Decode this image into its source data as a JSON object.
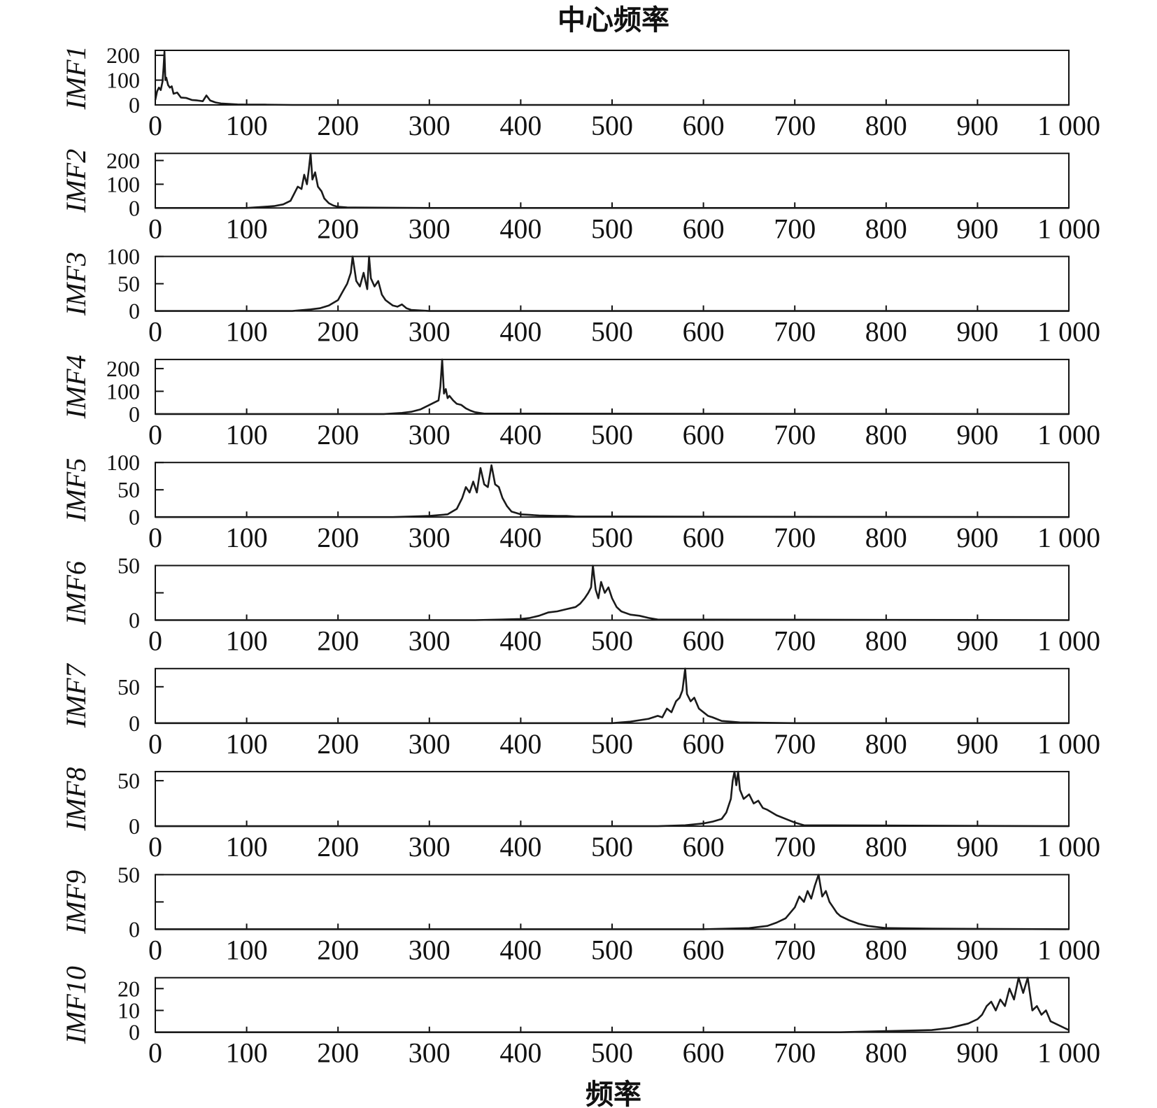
{
  "chart_data": {
    "type": "line",
    "title": "中心频率",
    "xlabel": "频率",
    "xlim": [
      0,
      1000
    ],
    "xticks": [
      0,
      100,
      200,
      300,
      400,
      500,
      600,
      700,
      800,
      900,
      1000
    ],
    "xtick_labels": [
      "0",
      "100",
      "200",
      "300",
      "400",
      "500",
      "600",
      "700",
      "800",
      "900",
      "1 000"
    ],
    "grid": false,
    "line_color": "#1a1a1a",
    "panels": [
      {
        "ylabel": "IMF1",
        "ylim": [
          0,
          220
        ],
        "yticks": [
          0,
          100,
          200
        ],
        "ytick_labels": [
          "0",
          "100",
          "200"
        ],
        "x": [
          0,
          2,
          4,
          6,
          8,
          9,
          10,
          11,
          12,
          14,
          16,
          18,
          20,
          24,
          28,
          34,
          40,
          46,
          52,
          56,
          60,
          66,
          72,
          80,
          90,
          100,
          120,
          150,
          200,
          300,
          500,
          700,
          1000
        ],
        "values": [
          20,
          55,
          70,
          60,
          95,
          150,
          215,
          100,
          110,
          80,
          70,
          75,
          45,
          50,
          30,
          28,
          20,
          18,
          15,
          38,
          18,
          10,
          6,
          4,
          2,
          1,
          1,
          0,
          0,
          0,
          0,
          0,
          0
        ]
      },
      {
        "ylabel": "IMF2",
        "ylim": [
          0,
          230
        ],
        "yticks": [
          0,
          100,
          200
        ],
        "ytick_labels": [
          "0",
          "100",
          "200"
        ],
        "x": [
          0,
          100,
          120,
          130,
          140,
          148,
          152,
          156,
          160,
          163,
          166,
          168,
          170,
          172,
          175,
          178,
          182,
          185,
          190,
          195,
          200,
          210,
          300,
          500,
          1000
        ],
        "values": [
          0,
          0,
          5,
          8,
          15,
          30,
          60,
          90,
          80,
          140,
          100,
          160,
          230,
          120,
          150,
          90,
          70,
          40,
          20,
          10,
          5,
          2,
          0,
          0,
          0
        ]
      },
      {
        "ylabel": "IMF3",
        "ylim": [
          0,
          100
        ],
        "yticks": [
          0,
          50,
          100
        ],
        "ytick_labels": [
          "0",
          "50",
          "100"
        ],
        "x": [
          0,
          150,
          170,
          180,
          190,
          200,
          205,
          210,
          214,
          216,
          220,
          224,
          228,
          232,
          234,
          236,
          240,
          244,
          248,
          252,
          256,
          260,
          265,
          270,
          275,
          280,
          300,
          1000
        ],
        "values": [
          0,
          0,
          3,
          5,
          10,
          20,
          35,
          50,
          70,
          100,
          55,
          45,
          70,
          40,
          100,
          60,
          45,
          55,
          30,
          20,
          15,
          10,
          8,
          12,
          5,
          2,
          0,
          0
        ]
      },
      {
        "ylabel": "IMF4",
        "ylim": [
          0,
          240
        ],
        "yticks": [
          0,
          100,
          200
        ],
        "ytick_labels": [
          "0",
          "100",
          "200"
        ],
        "x": [
          0,
          250,
          270,
          280,
          290,
          300,
          305,
          310,
          312,
          314,
          316,
          318,
          320,
          322,
          326,
          330,
          335,
          340,
          345,
          350,
          360,
          1000
        ],
        "values": [
          0,
          0,
          5,
          10,
          20,
          40,
          50,
          60,
          120,
          240,
          90,
          110,
          70,
          80,
          60,
          45,
          40,
          25,
          15,
          8,
          2,
          0
        ]
      },
      {
        "ylabel": "IMF5",
        "ylim": [
          0,
          100
        ],
        "yticks": [
          0,
          50,
          100
        ],
        "ytick_labels": [
          "0",
          "50",
          "100"
        ],
        "x": [
          0,
          260,
          280,
          300,
          320,
          330,
          336,
          340,
          344,
          348,
          352,
          356,
          360,
          364,
          368,
          372,
          376,
          380,
          385,
          390,
          400,
          410,
          420,
          440,
          450,
          460,
          1000
        ],
        "values": [
          0,
          0,
          1,
          2,
          5,
          15,
          35,
          55,
          45,
          65,
          45,
          90,
          60,
          55,
          95,
          60,
          55,
          35,
          20,
          10,
          5,
          4,
          3,
          2,
          2,
          1,
          0
        ]
      },
      {
        "ylabel": "IMF6",
        "ylim": [
          0,
          50
        ],
        "yticks": [
          0,
          25,
          50
        ],
        "ytick_labels": [
          "0",
          "",
          "50"
        ],
        "x": [
          0,
          350,
          380,
          400,
          410,
          420,
          430,
          440,
          450,
          460,
          465,
          470,
          474,
          477,
          479,
          482,
          485,
          488,
          492,
          496,
          500,
          505,
          510,
          520,
          530,
          540,
          550,
          1000
        ],
        "values": [
          0,
          0,
          0.5,
          1,
          2,
          4,
          7,
          8,
          10,
          12,
          15,
          20,
          25,
          30,
          50,
          28,
          20,
          35,
          25,
          30,
          20,
          12,
          8,
          5,
          4,
          2,
          0.5,
          0
        ]
      },
      {
        "ylabel": "IMF7",
        "ylim": [
          0,
          75
        ],
        "yticks": [
          0,
          50
        ],
        "ytick_labels": [
          "0",
          "50"
        ],
        "x": [
          0,
          500,
          520,
          530,
          540,
          550,
          555,
          560,
          565,
          570,
          574,
          577,
          580,
          582,
          586,
          590,
          595,
          600,
          605,
          610,
          620,
          630,
          640,
          700,
          1000
        ],
        "values": [
          0,
          0,
          2,
          4,
          6,
          10,
          8,
          20,
          15,
          30,
          35,
          45,
          75,
          40,
          30,
          35,
          20,
          15,
          10,
          8,
          3,
          2,
          1,
          0,
          0
        ]
      },
      {
        "ylabel": "IMF8",
        "ylim": [
          0,
          60
        ],
        "yticks": [
          0,
          50
        ],
        "ytick_labels": [
          "0",
          "50"
        ],
        "x": [
          0,
          550,
          580,
          600,
          610,
          620,
          625,
          630,
          632,
          634,
          636,
          638,
          640,
          644,
          650,
          655,
          660,
          665,
          670,
          675,
          680,
          690,
          700,
          710,
          1000
        ],
        "values": [
          0,
          0,
          1,
          3,
          5,
          8,
          15,
          30,
          50,
          60,
          45,
          60,
          40,
          30,
          35,
          25,
          28,
          20,
          18,
          15,
          12,
          8,
          4,
          1,
          0
        ]
      },
      {
        "ylabel": "IMF9",
        "ylim": [
          0,
          50
        ],
        "yticks": [
          0,
          25,
          50
        ],
        "ytick_labels": [
          "0",
          "",
          "50"
        ],
        "x": [
          0,
          600,
          650,
          670,
          680,
          690,
          700,
          705,
          710,
          714,
          718,
          722,
          726,
          730,
          734,
          738,
          742,
          746,
          750,
          760,
          770,
          780,
          790,
          800,
          850,
          1000
        ],
        "values": [
          0,
          0,
          1,
          3,
          6,
          10,
          20,
          30,
          25,
          35,
          28,
          40,
          50,
          30,
          35,
          25,
          20,
          15,
          12,
          8,
          5,
          3,
          2,
          1,
          0.5,
          0
        ]
      },
      {
        "ylabel": "IMF10",
        "ylim": [
          0,
          25
        ],
        "yticks": [
          0,
          10,
          20
        ],
        "ytick_labels": [
          "0",
          "10",
          "20"
        ],
        "x": [
          0,
          750,
          800,
          850,
          870,
          880,
          890,
          900,
          905,
          910,
          915,
          920,
          925,
          930,
          935,
          940,
          945,
          950,
          955,
          960,
          965,
          970,
          975,
          980,
          985,
          990,
          995,
          1000
        ],
        "values": [
          0,
          0,
          0.5,
          1,
          2,
          3,
          4,
          6,
          8,
          12,
          14,
          10,
          15,
          12,
          20,
          15,
          25,
          18,
          25,
          10,
          12,
          8,
          10,
          5,
          4,
          3,
          2,
          1
        ]
      }
    ]
  }
}
